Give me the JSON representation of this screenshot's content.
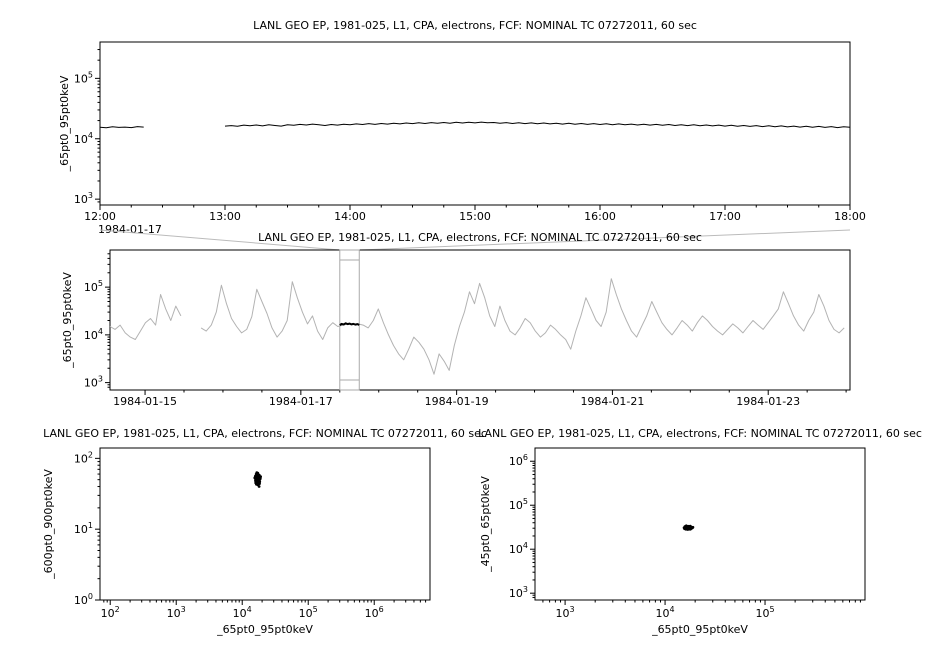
{
  "colors": {
    "series": "#000000",
    "context_series": "#b3b3b3",
    "selection": "#aaaaaa",
    "connector": "#bbbbbb",
    "background": "#ffffff"
  },
  "chart_data": [
    {
      "id": "top-timeseries",
      "type": "line",
      "title": "LANL GEO EP, 1981-025, L1, CPA, electrons, FCF: NOMINAL TC 07272011, 60 sec",
      "xlabel": "",
      "ylabel": "_65pt0_95pt0keV",
      "x_axis": {
        "scale": "linear",
        "min": 12,
        "max": 18,
        "minor_step": 0.25,
        "context_label": "1984-01-17",
        "ticks": [
          {
            "v": 12,
            "label": "12:00"
          },
          {
            "v": 13,
            "label": "13:00"
          },
          {
            "v": 14,
            "label": "14:00"
          },
          {
            "v": 15,
            "label": "15:00"
          },
          {
            "v": 16,
            "label": "16:00"
          },
          {
            "v": 17,
            "label": "17:00"
          },
          {
            "v": 18,
            "label": "18:00"
          }
        ]
      },
      "y_axis": {
        "scale": "log",
        "min": 800,
        "max": 400000,
        "ticks": [
          {
            "exp": 3
          },
          {
            "exp": 4
          },
          {
            "exp": 5
          }
        ]
      },
      "series": [
        {
          "name": "flux-65-95keV",
          "color": "#000000",
          "width": 1,
          "x0": 12.0,
          "dx": 0.05,
          "values": [
            15500,
            15200,
            15800,
            15400,
            15600,
            15300,
            15900,
            15600,
            null,
            null,
            null,
            null,
            null,
            null,
            null,
            null,
            null,
            null,
            null,
            null,
            16200,
            16500,
            16100,
            16800,
            16400,
            16900,
            16300,
            17000,
            16600,
            16200,
            17100,
            16700,
            17300,
            16900,
            17500,
            17000,
            16600,
            17200,
            16800,
            17400,
            17000,
            17600,
            17200,
            17800,
            17300,
            17900,
            17500,
            18100,
            17600,
            18200,
            17800,
            18400,
            17900,
            18500,
            18000,
            18600,
            18100,
            18700,
            18200,
            18800,
            18300,
            18900,
            18400,
            18600,
            18000,
            18500,
            17900,
            18400,
            17800,
            18300,
            17700,
            18200,
            17600,
            18100,
            17500,
            18000,
            17400,
            17900,
            17300,
            17800,
            17200,
            17700,
            17100,
            17600,
            17000,
            17500,
            16900,
            17400,
            16800,
            17300,
            16700,
            17200,
            16600,
            17100,
            16500,
            17000,
            16400,
            16900,
            16300,
            16800,
            16200,
            16700,
            16100,
            16600,
            16000,
            16500,
            15900,
            16400,
            15800,
            16300,
            15700,
            16200,
            15600,
            16100,
            15500,
            16000,
            15400,
            15900,
            15300,
            15800,
            15500
          ]
        }
      ]
    },
    {
      "id": "context-timeseries",
      "type": "line",
      "title": "LANL GEO EP, 1981-025, L1, CPA, electrons, FCF: NOMINAL TC 07272011, 60 sec",
      "xlabel": "",
      "ylabel": "_65pt0_95pt0keV",
      "x_axis": {
        "scale": "linear",
        "min": 14.55,
        "max": 24.05,
        "minor_step": 0.5,
        "ticks": [
          {
            "v": 15,
            "label": "1984-01-15"
          },
          {
            "v": 17,
            "label": "1984-01-17"
          },
          {
            "v": 19,
            "label": "1984-01-19"
          },
          {
            "v": 21,
            "label": "1984-01-21"
          },
          {
            "v": 23,
            "label": "1984-01-23"
          }
        ]
      },
      "y_axis": {
        "scale": "log",
        "min": 700,
        "max": 600000,
        "ticks": [
          {
            "exp": 3
          },
          {
            "exp": 4
          },
          {
            "exp": 5
          }
        ]
      },
      "zoom_region": {
        "x0": 17.5,
        "x1": 17.75
      },
      "series": [
        {
          "name": "context-flux-65-95keV",
          "color": "#b3b3b3",
          "width": 1,
          "x0": 14.55,
          "dx": 0.065,
          "values": [
            15000,
            13000,
            16000,
            11000,
            9000,
            8000,
            12000,
            18000,
            22000,
            16000,
            70000,
            35000,
            20000,
            40000,
            25000,
            null,
            null,
            null,
            14000,
            12000,
            16000,
            30000,
            110000,
            45000,
            22000,
            15000,
            11000,
            13000,
            24000,
            90000,
            50000,
            28000,
            14000,
            9000,
            12000,
            20000,
            130000,
            60000,
            30000,
            17000,
            25000,
            12000,
            8000,
            14000,
            18000,
            15000,
            16000,
            17000,
            16500,
            17000,
            16000,
            14000,
            20000,
            35000,
            18000,
            10000,
            6000,
            4000,
            3000,
            5000,
            9000,
            7000,
            5000,
            3000,
            1500,
            4000,
            2800,
            1800,
            6000,
            15000,
            30000,
            80000,
            45000,
            120000,
            60000,
            25000,
            15000,
            40000,
            20000,
            12000,
            10000,
            14000,
            22000,
            18000,
            12000,
            9000,
            11000,
            16000,
            13000,
            10000,
            8000,
            5000,
            12000,
            25000,
            60000,
            35000,
            20000,
            15000,
            30000,
            150000,
            70000,
            35000,
            20000,
            12000,
            9000,
            15000,
            25000,
            50000,
            30000,
            18000,
            13000,
            10000,
            14000,
            20000,
            16000,
            12000,
            18000,
            25000,
            20000,
            15000,
            12000,
            10000,
            13000,
            17000,
            14000,
            11000,
            15000,
            20000,
            16000,
            13000,
            18000,
            25000,
            35000,
            80000,
            45000,
            25000,
            16000,
            12000,
            20000,
            30000,
            70000,
            40000,
            20000,
            13000,
            11000,
            14000
          ]
        },
        {
          "name": "selected-interval-flux",
          "color": "#000000",
          "width": 2,
          "x0": 17.5,
          "dx": 0.025,
          "values": [
            16000,
            17000,
            16500,
            17500,
            16800,
            17200,
            16600,
            17000,
            16400,
            16800,
            16200
          ]
        }
      ]
    },
    {
      "id": "scatter-600-900",
      "type": "scatter",
      "title": "LANL GEO EP, 1981-025, L1, CPA, electrons, FCF: NOMINAL TC 07272011, 60 sec",
      "xlabel": "_65pt0_95pt0keV",
      "ylabel": "_600pt0_900pt0keV",
      "x_axis": {
        "scale": "log",
        "min": 70,
        "max": 7000000,
        "ticks": [
          {
            "exp": 2
          },
          {
            "exp": 3
          },
          {
            "exp": 4
          },
          {
            "exp": 5
          },
          {
            "exp": 6
          }
        ]
      },
      "y_axis": {
        "scale": "log",
        "min": 1,
        "max": 140,
        "ticks": [
          {
            "exp": 0
          },
          {
            "exp": 1
          },
          {
            "exp": 2
          }
        ]
      },
      "points": [
        [
          17000,
          52
        ],
        [
          16500,
          55
        ],
        [
          17500,
          48
        ],
        [
          18000,
          58
        ],
        [
          16000,
          45
        ],
        [
          17200,
          62
        ],
        [
          16800,
          50
        ],
        [
          17800,
          44
        ],
        [
          15800,
          56
        ],
        [
          18500,
          53
        ],
        [
          17100,
          47
        ],
        [
          16300,
          60
        ],
        [
          17600,
          51
        ],
        [
          18200,
          46
        ],
        [
          16900,
          57
        ],
        [
          17400,
          42
        ],
        [
          16100,
          54
        ],
        [
          17900,
          49
        ],
        [
          16600,
          63
        ],
        [
          18800,
          52
        ],
        [
          17300,
          55
        ],
        [
          15900,
          48
        ],
        [
          18100,
          58
        ],
        [
          16700,
          45
        ],
        [
          17700,
          53
        ],
        [
          16200,
          50
        ],
        [
          18400,
          47
        ],
        [
          17000,
          60
        ],
        [
          16400,
          43
        ],
        [
          17500,
          56
        ],
        [
          18600,
          51
        ],
        [
          16000,
          49
        ],
        [
          17200,
          54
        ],
        [
          17800,
          46
        ],
        [
          16800,
          58
        ],
        [
          15700,
          52
        ],
        [
          18300,
          44
        ],
        [
          17100,
          61
        ],
        [
          16500,
          47
        ],
        [
          17600,
          50
        ],
        [
          19000,
          55
        ],
        [
          15500,
          53
        ],
        [
          17400,
          48
        ],
        [
          16900,
          52
        ],
        [
          18000,
          40
        ]
      ]
    },
    {
      "id": "scatter-45-65",
      "type": "scatter",
      "title": "LANL GEO EP, 1981-025, L1, CPA, electrons, FCF: NOMINAL TC 07272011, 60 sec",
      "xlabel": "_65pt0_95pt0keV",
      "ylabel": "_45pt0_65pt0keV",
      "x_axis": {
        "scale": "log",
        "min": 500,
        "max": 1000000,
        "ticks": [
          {
            "exp": 3
          },
          {
            "exp": 4
          },
          {
            "exp": 5
          }
        ]
      },
      "y_axis": {
        "scale": "log",
        "min": 700,
        "max": 2000000,
        "ticks": [
          {
            "exp": 3
          },
          {
            "exp": 4
          },
          {
            "exp": 5
          },
          {
            "exp": 6
          }
        ]
      },
      "points": [
        [
          17000,
          31000
        ],
        [
          16500,
          30000
        ],
        [
          17500,
          32000
        ],
        [
          18000,
          29500
        ],
        [
          16000,
          33000
        ],
        [
          17200,
          30500
        ],
        [
          16800,
          31500
        ],
        [
          17800,
          28500
        ],
        [
          15800,
          32500
        ],
        [
          18500,
          31000
        ],
        [
          17100,
          29000
        ],
        [
          16300,
          34000
        ],
        [
          17600,
          30000
        ],
        [
          18200,
          31500
        ],
        [
          16900,
          28000
        ],
        [
          17400,
          32000
        ],
        [
          16100,
          30500
        ],
        [
          17900,
          33500
        ],
        [
          16600,
          29500
        ],
        [
          18800,
          31000
        ],
        [
          17300,
          30000
        ],
        [
          15900,
          32000
        ],
        [
          18100,
          29000
        ],
        [
          16700,
          31500
        ],
        [
          17700,
          33000
        ],
        [
          16200,
          28500
        ],
        [
          18400,
          30500
        ],
        [
          17000,
          32500
        ],
        [
          16400,
          29800
        ],
        [
          17500,
          31200
        ],
        [
          18600,
          30200
        ],
        [
          16000,
          31800
        ],
        [
          17200,
          28800
        ],
        [
          17800,
          32800
        ],
        [
          16800,
          30800
        ],
        [
          15700,
          29200
        ],
        [
          18300,
          31600
        ],
        [
          17100,
          33200
        ],
        [
          16500,
          30400
        ],
        [
          17600,
          29600
        ],
        [
          19000,
          31400
        ],
        [
          15500,
          30600
        ],
        [
          17400,
          32400
        ],
        [
          16900,
          28600
        ],
        [
          18000,
          31900
        ]
      ]
    }
  ]
}
